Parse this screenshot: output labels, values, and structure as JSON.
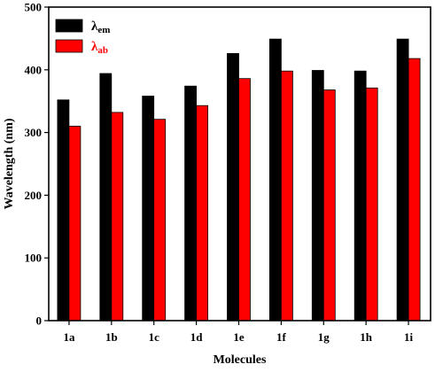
{
  "chart_data": {
    "type": "bar",
    "title": "",
    "xlabel": "Molecules",
    "ylabel": "Wavelength (nm)",
    "categories": [
      "1a",
      "1b",
      "1c",
      "1d",
      "1e",
      "1f",
      "1g",
      "1h",
      "1i"
    ],
    "ylim": [
      0,
      500
    ],
    "yticks": [
      0,
      100,
      200,
      300,
      400,
      500
    ],
    "grid": false,
    "legend_position": "top-left",
    "series": [
      {
        "name": "λem",
        "name_main": "λ",
        "name_sub": "em",
        "color": "#000000",
        "values": [
          352,
          394,
          358,
          374,
          426,
          449,
          399,
          398,
          449
        ]
      },
      {
        "name": "λab",
        "name_main": "λ",
        "name_sub": "ab",
        "color": "#ff0000",
        "values": [
          310,
          332,
          321,
          343,
          386,
          398,
          368,
          371,
          418
        ]
      }
    ]
  }
}
